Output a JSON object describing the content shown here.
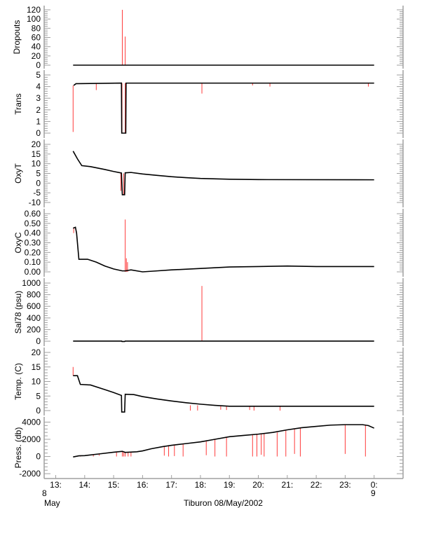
{
  "chart_data": [
    {
      "type": "line",
      "ylabel": "Dropouts",
      "ylim": [
        0,
        120
      ],
      "ticks": [
        0,
        20,
        40,
        60,
        80,
        100,
        120
      ],
      "decimals": 0,
      "line": [
        [
          13.6,
          0
        ],
        [
          15.28,
          0
        ],
        [
          15.4,
          0
        ],
        [
          24.0,
          0
        ]
      ],
      "spikes": [
        [
          15.3,
          0,
          120
        ],
        [
          15.4,
          0,
          62
        ]
      ]
    },
    {
      "type": "line",
      "ylabel": "Trans",
      "ylim": [
        0,
        5
      ],
      "ticks": [
        0,
        1,
        2,
        3,
        4,
        5
      ],
      "decimals": 0,
      "line": [
        [
          13.62,
          4.1
        ],
        [
          13.7,
          4.25
        ],
        [
          15.27,
          4.3
        ],
        [
          15.28,
          0
        ],
        [
          15.42,
          0
        ],
        [
          15.43,
          4.3
        ],
        [
          24.0,
          4.3
        ]
      ],
      "spikes": [
        [
          13.6,
          4.1,
          0.1
        ],
        [
          14.4,
          4.25,
          3.7
        ],
        [
          15.29,
          4.3,
          0
        ],
        [
          15.4,
          4.3,
          0
        ],
        [
          18.05,
          4.3,
          3.4
        ],
        [
          19.8,
          4.3,
          4.1
        ],
        [
          20.4,
          4.3,
          4.0
        ],
        [
          23.8,
          4.3,
          4.0
        ]
      ]
    },
    {
      "type": "line",
      "ylabel": "OxyT",
      "ylim": [
        -10,
        20
      ],
      "ticks": [
        -10,
        -5,
        0,
        5,
        10,
        15,
        20
      ],
      "decimals": 0,
      "line": [
        [
          13.6,
          16.5
        ],
        [
          13.75,
          12.5
        ],
        [
          13.9,
          9
        ],
        [
          14.2,
          8.5
        ],
        [
          14.7,
          7
        ],
        [
          15.0,
          6
        ],
        [
          15.27,
          5.2
        ],
        [
          15.3,
          -6
        ],
        [
          15.38,
          -6
        ],
        [
          15.4,
          5.3
        ],
        [
          15.6,
          5.5
        ],
        [
          16.0,
          4.7
        ],
        [
          16.5,
          4.0
        ],
        [
          17.0,
          3.3
        ],
        [
          17.5,
          2.8
        ],
        [
          18.0,
          2.4
        ],
        [
          19.0,
          2.0
        ],
        [
          20.0,
          1.8
        ],
        [
          24.0,
          1.7
        ]
      ],
      "spikes": [
        [
          15.25,
          5.0,
          -4
        ],
        [
          15.35,
          5.0,
          -6
        ]
      ]
    },
    {
      "type": "line",
      "ylabel": "OxyC",
      "ylim": [
        0,
        0.6
      ],
      "ticks": [
        0,
        0.1,
        0.2,
        0.3,
        0.4,
        0.5,
        0.6
      ],
      "decimals": 2,
      "line": [
        [
          13.6,
          0.45
        ],
        [
          13.68,
          0.46
        ],
        [
          13.72,
          0.4
        ],
        [
          13.8,
          0.13
        ],
        [
          14.1,
          0.13
        ],
        [
          14.4,
          0.1
        ],
        [
          14.7,
          0.06
        ],
        [
          15.0,
          0.03
        ],
        [
          15.3,
          0.01
        ],
        [
          15.4,
          0.01
        ],
        [
          15.6,
          0.02
        ],
        [
          16.0,
          0.0
        ],
        [
          16.5,
          0.01
        ],
        [
          17.0,
          0.02
        ],
        [
          18.0,
          0.035
        ],
        [
          19.0,
          0.05
        ],
        [
          20.0,
          0.055
        ],
        [
          21.0,
          0.06
        ],
        [
          22.0,
          0.055
        ],
        [
          24.0,
          0.055
        ]
      ],
      "spikes": [
        [
          15.4,
          0.0,
          0.54
        ],
        [
          15.44,
          0.0,
          0.14
        ],
        [
          15.48,
          0.0,
          0.1
        ],
        [
          13.62,
          0.4,
          0.46
        ]
      ]
    },
    {
      "type": "line",
      "ylabel": "Sal78 (psu)",
      "ylim": [
        0,
        1000
      ],
      "ticks": [
        0,
        200,
        400,
        600,
        800,
        1000
      ],
      "decimals": 0,
      "line": [
        [
          13.6,
          2
        ],
        [
          15.28,
          2
        ],
        [
          15.29,
          -5
        ],
        [
          15.38,
          -5
        ],
        [
          15.4,
          2
        ],
        [
          24.0,
          2
        ]
      ],
      "spikes": [
        [
          18.05,
          2,
          950
        ]
      ]
    },
    {
      "type": "line",
      "ylabel": "Temp. (C)",
      "ylim": [
        0,
        20
      ],
      "ticks": [
        0,
        5,
        10,
        15,
        20
      ],
      "decimals": 0,
      "line": [
        [
          13.6,
          12
        ],
        [
          13.75,
          12
        ],
        [
          13.85,
          9
        ],
        [
          14.2,
          8.8
        ],
        [
          14.7,
          7.2
        ],
        [
          15.0,
          6.2
        ],
        [
          15.27,
          5.2
        ],
        [
          15.28,
          -0.5
        ],
        [
          15.38,
          -0.5
        ],
        [
          15.4,
          5.6
        ],
        [
          15.7,
          5.5
        ],
        [
          16.0,
          4.8
        ],
        [
          16.5,
          4.0
        ],
        [
          17.0,
          3.3
        ],
        [
          17.5,
          2.7
        ],
        [
          18.0,
          2.2
        ],
        [
          18.5,
          1.8
        ],
        [
          19.0,
          1.5
        ],
        [
          24.0,
          1.5
        ]
      ],
      "spikes": [
        [
          13.6,
          12,
          15
        ],
        [
          17.65,
          1.8,
          0
        ],
        [
          17.9,
          1.8,
          0
        ],
        [
          18.7,
          1.5,
          0.3
        ],
        [
          18.9,
          1.5,
          0.2
        ],
        [
          19.7,
          1.5,
          0.2
        ],
        [
          19.85,
          1.5,
          0
        ],
        [
          20.75,
          1.5,
          0
        ]
      ]
    },
    {
      "type": "line",
      "ylabel": "Press. (db)",
      "ylim": [
        -2400,
        4200
      ],
      "ticks": [
        -2000,
        0,
        2000,
        4000
      ],
      "decimals": 0,
      "line": [
        [
          13.6,
          -50
        ],
        [
          13.8,
          80
        ],
        [
          14.0,
          100
        ],
        [
          14.5,
          300
        ],
        [
          15.0,
          500
        ],
        [
          15.3,
          600
        ],
        [
          15.4,
          480
        ],
        [
          15.8,
          550
        ],
        [
          16.0,
          650
        ],
        [
          16.3,
          900
        ],
        [
          16.7,
          1150
        ],
        [
          17.0,
          1300
        ],
        [
          17.5,
          1500
        ],
        [
          18.0,
          1700
        ],
        [
          18.5,
          2000
        ],
        [
          19.0,
          2300
        ],
        [
          19.5,
          2450
        ],
        [
          20.0,
          2600
        ],
        [
          20.5,
          2800
        ],
        [
          21.0,
          3100
        ],
        [
          21.5,
          3350
        ],
        [
          22.0,
          3500
        ],
        [
          22.5,
          3650
        ],
        [
          23.0,
          3700
        ],
        [
          23.6,
          3700
        ],
        [
          23.8,
          3600
        ],
        [
          24.0,
          3300
        ]
      ],
      "spikes": [
        [
          13.85,
          80,
          0
        ],
        [
          14.3,
          250,
          0
        ],
        [
          14.5,
          300,
          100
        ],
        [
          15.1,
          550,
          0
        ],
        [
          15.3,
          600,
          0
        ],
        [
          15.35,
          600,
          0
        ],
        [
          15.4,
          500,
          0
        ],
        [
          15.5,
          500,
          0
        ],
        [
          15.6,
          550,
          0
        ],
        [
          16.75,
          1200,
          100
        ],
        [
          16.9,
          1250,
          0
        ],
        [
          17.1,
          1300,
          50
        ],
        [
          17.4,
          1450,
          0
        ],
        [
          18.2,
          1750,
          150
        ],
        [
          18.5,
          2000,
          0
        ],
        [
          18.9,
          2250,
          0
        ],
        [
          19.8,
          2550,
          0
        ],
        [
          19.95,
          2600,
          0
        ],
        [
          20.1,
          2650,
          200
        ],
        [
          20.2,
          2650,
          0
        ],
        [
          20.65,
          2800,
          0
        ],
        [
          20.95,
          3000,
          0
        ],
        [
          21.25,
          3200,
          300
        ],
        [
          21.45,
          3300,
          0
        ],
        [
          23.0,
          3700,
          300
        ],
        [
          23.7,
          3650,
          0
        ]
      ]
    }
  ],
  "x_axis": {
    "xlim": [
      12.6,
      25.0
    ],
    "ticks": [
      {
        "v": 13,
        "label": "13:"
      },
      {
        "v": 14,
        "label": "14:"
      },
      {
        "v": 15,
        "label": "15:"
      },
      {
        "v": 16,
        "label": "16:"
      },
      {
        "v": 17,
        "label": "17:"
      },
      {
        "v": 18,
        "label": "18:"
      },
      {
        "v": 19,
        "label": "19:"
      },
      {
        "v": 20,
        "label": "20:"
      },
      {
        "v": 21,
        "label": "21:"
      },
      {
        "v": 22,
        "label": "22:"
      },
      {
        "v": 23,
        "label": "23:"
      },
      {
        "v": 24,
        "label": "0:"
      }
    ],
    "start_day": "8",
    "start_month": "May",
    "end_day": "9",
    "title": "Tiburon 08/May/2002"
  },
  "colors": {
    "line": "#000000",
    "spike": "#ff3b3b",
    "axis": "#a0a0a0"
  }
}
